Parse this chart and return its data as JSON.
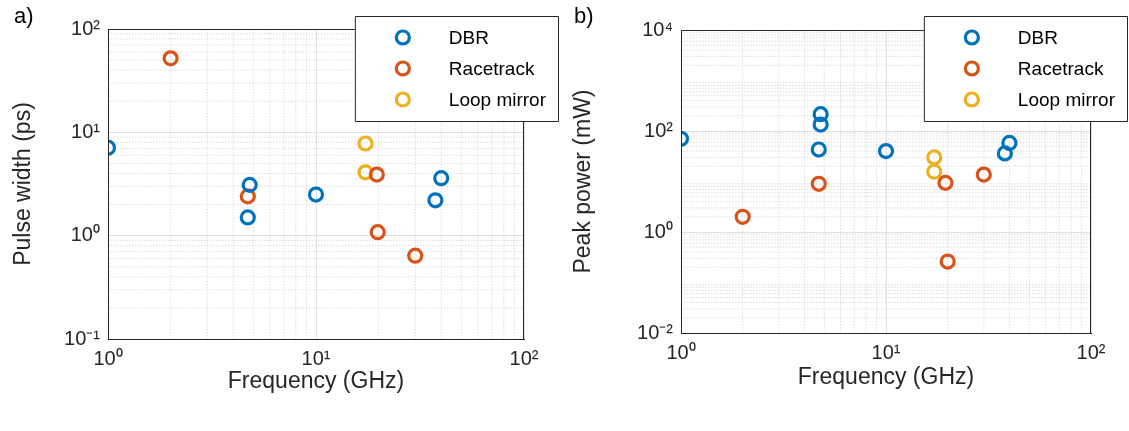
{
  "chart_data": [
    {
      "type": "scatter",
      "title": "a)",
      "xlabel": "Frequency (GHz)",
      "ylabel": "Pulse width (ps)",
      "log": "xy",
      "grid": true,
      "legend": "top right",
      "marker": "circle",
      "xlim": [
        1,
        100
      ],
      "xticks": [
        {
          "value": 1,
          "label": "10⁰"
        },
        {
          "value": 10,
          "label": "10¹"
        },
        {
          "value": 100,
          "label": "10²"
        }
      ],
      "ylim": [
        0.1,
        100
      ],
      "yticks": [
        {
          "value": 0.1,
          "label": "10⁻¹"
        },
        {
          "value": 1,
          "label": "10⁰"
        },
        {
          "value": 10,
          "label": "10¹"
        },
        {
          "value": 100,
          "label": "10²"
        }
      ],
      "series": [
        {
          "name": "DBR",
          "color": "#0072bd",
          "x": [
            1,
            4.8,
            4.7,
            10,
            37.5,
            40
          ],
          "values": [
            7.1,
            3.1,
            1.5,
            2.5,
            2.2,
            3.6
          ]
        },
        {
          "name": "Racetrack",
          "color": "#d95319",
          "x": [
            2,
            4.7,
            19.6,
            19.8,
            30
          ],
          "values": [
            52,
            2.4,
            3.9,
            1.08,
            0.64
          ]
        },
        {
          "name": "Loop mirror",
          "color": "#edb120",
          "x": [
            17.3,
            17.3
          ],
          "values": [
            7.8,
            4.1
          ]
        }
      ]
    },
    {
      "type": "scatter",
      "title": "b)",
      "xlabel": "Frequency (GHz)",
      "ylabel": "Peak power (mW)",
      "log": "xy",
      "grid": true,
      "legend": "top right",
      "marker": "circle",
      "xlim": [
        1,
        100
      ],
      "xticks": [
        {
          "value": 1,
          "label": "10⁰"
        },
        {
          "value": 10,
          "label": "10¹"
        },
        {
          "value": 100,
          "label": "10²"
        }
      ],
      "ylim": [
        0.01,
        10000
      ],
      "yticks": [
        {
          "value": 0.01,
          "label": "10⁻²"
        },
        {
          "value": 1,
          "label": "10⁰"
        },
        {
          "value": 100,
          "label": "10²"
        },
        {
          "value": 10000,
          "label": "10⁴"
        }
      ],
      "series": [
        {
          "name": "DBR",
          "color": "#0072bd",
          "x": [
            1,
            4.8,
            4.8,
            4.7,
            10,
            38,
            40
          ],
          "values": [
            70,
            215,
            134,
            43,
            40,
            36,
            58
          ]
        },
        {
          "name": "Racetrack",
          "color": "#d95319",
          "x": [
            2,
            4.7,
            19.5,
            20,
            30
          ],
          "values": [
            2.0,
            9,
            9.4,
            0.26,
            13.7
          ]
        },
        {
          "name": "Loop mirror",
          "color": "#edb120",
          "x": [
            17.2,
            17.2
          ],
          "values": [
            30,
            15.6
          ]
        }
      ]
    }
  ]
}
